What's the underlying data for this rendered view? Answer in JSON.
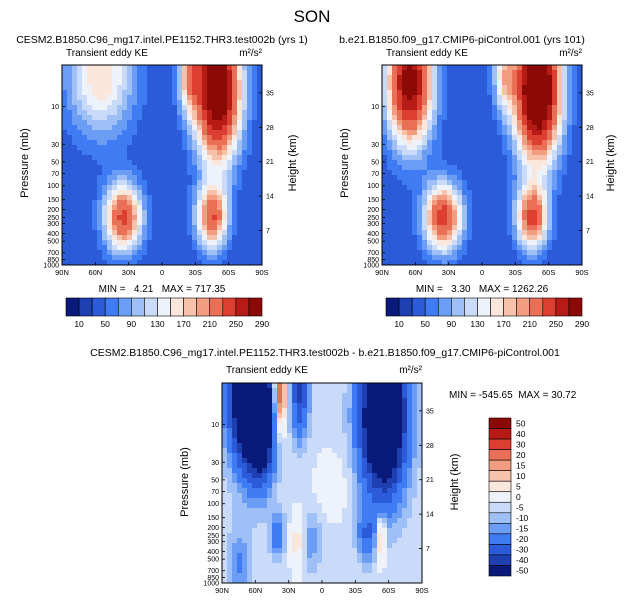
{
  "figure": {
    "title": "SON"
  },
  "chart_data": [
    {
      "type": "heatmap",
      "title": "CESM2.B1850.C96_mg17.intel.PE1152.THR3.test002b (yrs 1)",
      "left_subtitle": "Transient eddy KE",
      "units": "m²/s²",
      "ylabel": "Pressure (mb)",
      "y2label": "Height (km)",
      "x_ticks": [
        "90N",
        "60N",
        "30N",
        "0",
        "30S",
        "60S",
        "90S"
      ],
      "y_ticks": [
        "10",
        "30",
        "50",
        "70",
        "100",
        "150",
        "200",
        "250",
        "300",
        "400",
        "500",
        "700",
        "850",
        "1000"
      ],
      "y2_ticks": [
        "35",
        "28",
        "21",
        "14",
        "7"
      ],
      "xlim": [
        90,
        -90
      ],
      "ylim_mb": [
        1000,
        3
      ],
      "stats": {
        "min": "4.21",
        "max": "717.35"
      },
      "stats_text": "MIN =   4.21   MAX = 717.35",
      "blobs": [
        {
          "lat": 35,
          "p": 250,
          "amp": 230,
          "wlat": 17,
          "wp": 0.45
        },
        {
          "lat": -45,
          "p": 250,
          "amp": 215,
          "wlat": 14,
          "wp": 0.42
        },
        {
          "lat": -50,
          "p": 6,
          "amp": 380,
          "wlat": 20,
          "wp": 0.9
        },
        {
          "lat": -25,
          "p": 4,
          "amp": 140,
          "wlat": 10,
          "wp": 0.5
        },
        {
          "lat": 55,
          "p": 4,
          "amp": 140,
          "wlat": 30,
          "wp": 0.8
        }
      ],
      "base": 30,
      "colorbar": {
        "labels": [
          "10",
          "50",
          "90",
          "130",
          "170",
          "210",
          "250",
          "290"
        ],
        "colors": [
          "#0a1a7a",
          "#1d3fb0",
          "#2b5bd8",
          "#3f7bf2",
          "#6b9df5",
          "#9fc0f7",
          "#c9dbf9",
          "#eef3fb",
          "#fbe6dc",
          "#f6c2ab",
          "#f29c80",
          "#ea6f57",
          "#dc3f31",
          "#b71b15",
          "#8b0a05"
        ]
      }
    },
    {
      "type": "heatmap",
      "title": "b.e21.B1850.f09_g17.CMIP6-piControl.001 (yrs 101)",
      "left_subtitle": "Transient eddy KE",
      "units": "m²/s²",
      "ylabel": "Pressure (mb)",
      "y2label": "Height (km)",
      "x_ticks": [
        "90N",
        "60N",
        "30N",
        "0",
        "30S",
        "60S",
        "90S"
      ],
      "y_ticks": [
        "10",
        "30",
        "50",
        "70",
        "100",
        "150",
        "200",
        "250",
        "300",
        "400",
        "500",
        "700",
        "850",
        "1000"
      ],
      "y2_ticks": [
        "35",
        "28",
        "21",
        "14",
        "7"
      ],
      "xlim": [
        90,
        -90
      ],
      "ylim_mb": [
        1000,
        3
      ],
      "stats": {
        "min": "3.30",
        "max": "1262.26"
      },
      "stats_text": "MIN =   3.30   MAX = 1262.26",
      "blobs": [
        {
          "lat": 35,
          "p": 250,
          "amp": 240,
          "wlat": 17,
          "wp": 0.45
        },
        {
          "lat": -45,
          "p": 250,
          "amp": 225,
          "wlat": 14,
          "wp": 0.42
        },
        {
          "lat": -50,
          "p": 6,
          "amp": 420,
          "wlat": 20,
          "wp": 0.9
        },
        {
          "lat": 65,
          "p": 5,
          "amp": 330,
          "wlat": 20,
          "wp": 0.8
        },
        {
          "lat": -20,
          "p": 4,
          "amp": 120,
          "wlat": 10,
          "wp": 0.5
        }
      ],
      "base": 30,
      "colorbar": {
        "labels": [
          "10",
          "50",
          "90",
          "130",
          "170",
          "210",
          "250",
          "290"
        ],
        "colors": [
          "#0a1a7a",
          "#1d3fb0",
          "#2b5bd8",
          "#3f7bf2",
          "#6b9df5",
          "#9fc0f7",
          "#c9dbf9",
          "#eef3fb",
          "#fbe6dc",
          "#f6c2ab",
          "#f29c80",
          "#ea6f57",
          "#dc3f31",
          "#b71b15",
          "#8b0a05"
        ]
      }
    },
    {
      "type": "heatmap",
      "title": "CESM2.B1850.C96_mg17.intel.PE1152.THR3.test002b - b.e21.B1850.f09_g17.CMIP6-piControl.001",
      "left_subtitle": "Transient eddy KE",
      "units": "m²/s²",
      "ylabel": "Pressure (mb)",
      "y2label": "Height (km)",
      "x_ticks": [
        "90N",
        "60N",
        "30N",
        "0",
        "30S",
        "60S",
        "90S"
      ],
      "y_ticks": [
        "10",
        "30",
        "50",
        "70",
        "100",
        "150",
        "200",
        "250",
        "300",
        "400",
        "500",
        "700",
        "850",
        "1000"
      ],
      "y2_ticks": [
        "35",
        "28",
        "21",
        "14",
        "7"
      ],
      "xlim": [
        90,
        -90
      ],
      "ylim_mb": [
        1000,
        3
      ],
      "stats": {
        "min": "-545.65",
        "max": "30.72"
      },
      "stats_text": "MIN = -545.65  MAX = 30.72",
      "blobs": [
        {
          "lat": 65,
          "p": 4,
          "amp": -90,
          "wlat": 18,
          "wp": 0.9
        },
        {
          "lat": 55,
          "p": 12,
          "amp": -45,
          "wlat": 12,
          "wp": 0.7
        },
        {
          "lat": 38,
          "p": 4,
          "amp": 45,
          "wlat": 6,
          "wp": 0.5
        },
        {
          "lat": 20,
          "p": 4,
          "amp": -35,
          "wlat": 8,
          "wp": 0.6
        },
        {
          "lat": -55,
          "p": 8,
          "amp": -90,
          "wlat": 20,
          "wp": 1.0
        },
        {
          "lat": 40,
          "p": 250,
          "amp": -20,
          "wlat": 7,
          "wp": 0.3
        },
        {
          "lat": 22,
          "p": 300,
          "amp": 18,
          "wlat": 6,
          "wp": 0.35
        },
        {
          "lat": -40,
          "p": 250,
          "amp": -22,
          "wlat": 8,
          "wp": 0.35
        },
        {
          "lat": -53,
          "p": 280,
          "amp": 25,
          "wlat": 4,
          "wp": 0.3
        },
        {
          "lat": 10,
          "p": 300,
          "amp": -12,
          "wlat": 10,
          "wp": 0.4
        },
        {
          "lat": -10,
          "p": 60,
          "amp": 6,
          "wlat": 15,
          "wp": 0.4
        },
        {
          "lat": 75,
          "p": 600,
          "amp": -15,
          "wlat": 10,
          "wp": 0.5
        }
      ],
      "base": -6,
      "colorbar": {
        "labels": [
          "50",
          "40",
          "30",
          "20",
          "15",
          "10",
          "5",
          "0",
          "-5",
          "-10",
          "-15",
          "-20",
          "-30",
          "-40",
          "-50"
        ],
        "colors": [
          "#8b0a05",
          "#b71b15",
          "#dc3f31",
          "#ea6f57",
          "#f29c80",
          "#f6c2ab",
          "#fbe6dc",
          "#eef3fb",
          "#c9dbf9",
          "#9fc0f7",
          "#6b9df5",
          "#3f7bf2",
          "#2b5bd8",
          "#1d3fb0",
          "#0a1a7a"
        ]
      }
    }
  ]
}
